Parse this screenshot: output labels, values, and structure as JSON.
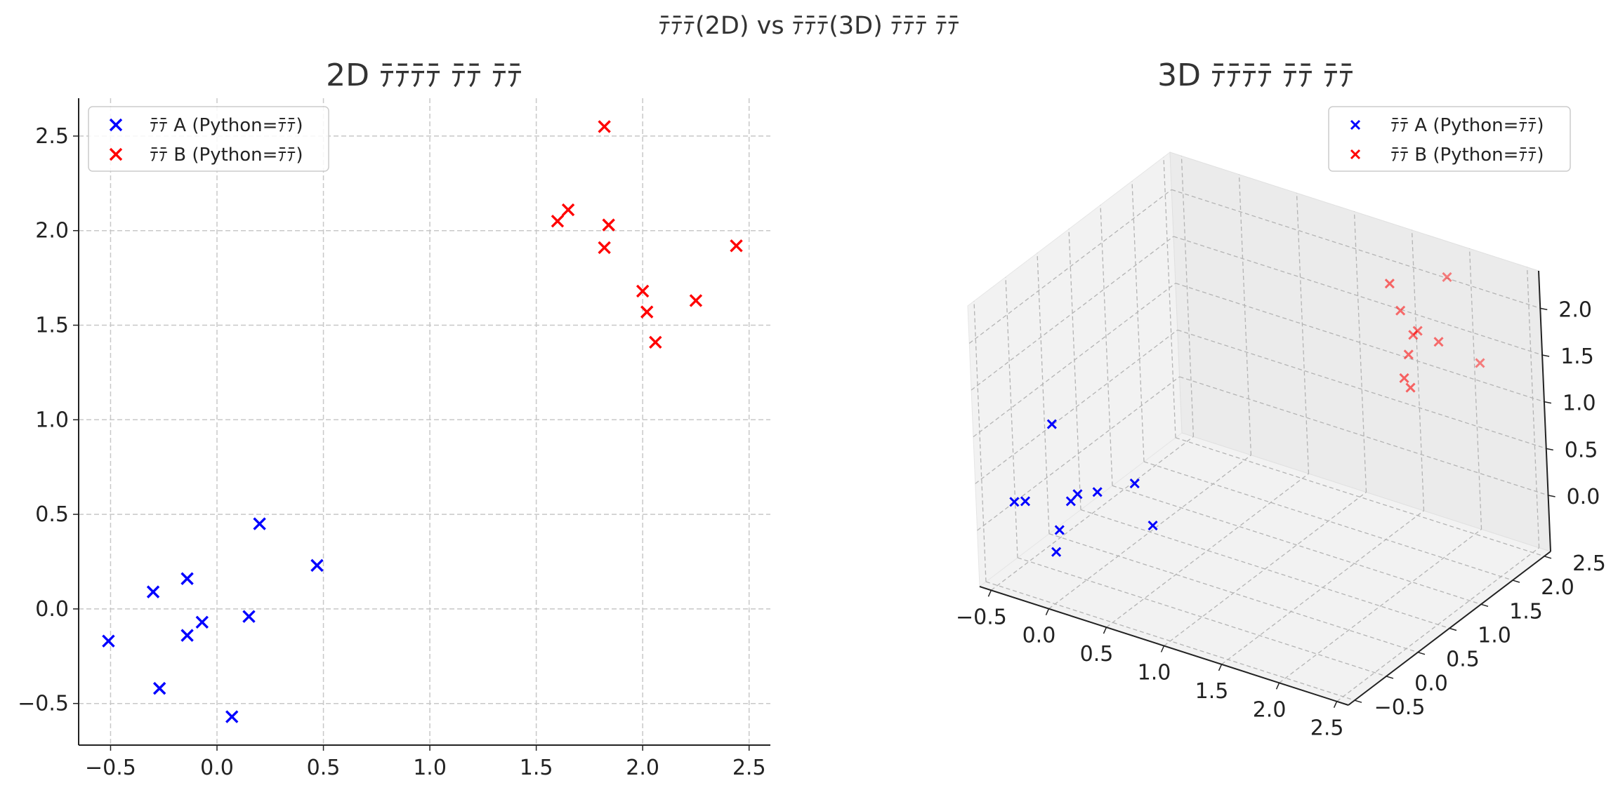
{
  "figure": {
    "suptitle": "ﾃﾃﾃ(2D) vs ﾃﾃﾃ(3D) ﾃﾃﾃ ﾃﾃ"
  },
  "chart_data": [
    {
      "type": "scatter",
      "title": "2D ﾃﾃﾃﾃ ﾃﾃ ﾃﾃ",
      "xlabel": "",
      "ylabel": "",
      "xlim": [
        -0.65,
        2.6
      ],
      "ylim": [
        -0.72,
        2.7
      ],
      "xticks": [
        "−0.5",
        "0.0",
        "0.5",
        "1.0",
        "1.5",
        "2.0",
        "2.5"
      ],
      "yticks": [
        "−0.5",
        "0.0",
        "0.5",
        "1.0",
        "1.5",
        "2.0",
        "2.5"
      ],
      "grid": true,
      "legend": "upper-left",
      "series": [
        {
          "name": "ﾃﾃ A (Python=ﾃﾃ)",
          "color": "#0000ff",
          "marker": "x",
          "x": [
            -0.51,
            -0.3,
            -0.27,
            -0.14,
            -0.14,
            -0.07,
            0.07,
            0.15,
            0.2,
            0.47
          ],
          "y": [
            -0.17,
            0.09,
            -0.42,
            0.16,
            -0.14,
            -0.07,
            -0.57,
            -0.04,
            0.45,
            0.23
          ]
        },
        {
          "name": "ﾃﾃ B (Python=ﾃﾃ)",
          "color": "#ff0000",
          "marker": "x",
          "x": [
            1.6,
            1.65,
            1.82,
            1.82,
            1.84,
            2.0,
            2.02,
            2.06,
            2.25,
            2.44
          ],
          "y": [
            2.05,
            2.11,
            2.55,
            1.91,
            2.03,
            1.68,
            1.57,
            1.41,
            1.63,
            1.92
          ]
        }
      ]
    },
    {
      "type": "scatter3d",
      "title": "3D ﾃﾃﾃﾃ ﾃﾃ ﾃﾃ",
      "xlim": [
        -0.6,
        2.6
      ],
      "ylim": [
        -0.6,
        2.6
      ],
      "zlim": [
        -0.6,
        2.4
      ],
      "xticks": [
        "−0.5",
        "0.0",
        "0.5",
        "1.0",
        "1.5",
        "2.0",
        "2.5"
      ],
      "yticks": [
        "−0.5",
        "0.0",
        "0.5",
        "1.0",
        "1.5",
        "2.0",
        "2.5"
      ],
      "zticks": [
        "0.0",
        "0.5",
        "1.0",
        "1.5",
        "2.0"
      ],
      "grid": true,
      "legend": "upper-right",
      "series": [
        {
          "name": "ﾃﾃ A (Python=ﾃﾃ)",
          "color": "#0000ff",
          "marker": "x",
          "x": [
            -0.51,
            -0.3,
            -0.27,
            -0.14,
            -0.14,
            -0.07,
            0.07,
            0.15,
            0.2,
            0.47
          ],
          "y": [
            -0.17,
            0.09,
            -0.42,
            0.16,
            -0.14,
            -0.07,
            -0.57,
            -0.04,
            0.45,
            0.23
          ],
          "z": [
            0.12,
            0.9,
            0.35,
            0.18,
            -0.05,
            0.25,
            0.02,
            0.42,
            0.28,
            0.05
          ]
        },
        {
          "name": "ﾃﾃ B (Python=ﾃﾃ)",
          "color": "#ff0000",
          "marker": "x",
          "x": [
            1.6,
            1.65,
            1.82,
            1.82,
            1.84,
            2.0,
            2.02,
            2.06,
            2.25,
            2.44
          ],
          "y": [
            2.05,
            2.11,
            2.55,
            1.91,
            2.03,
            1.68,
            1.57,
            1.41,
            1.63,
            1.92
          ],
          "z": [
            2.15,
            1.85,
            2.05,
            1.55,
            1.75,
            1.95,
            1.45,
            1.65,
            2.0,
            1.7
          ]
        }
      ]
    }
  ]
}
